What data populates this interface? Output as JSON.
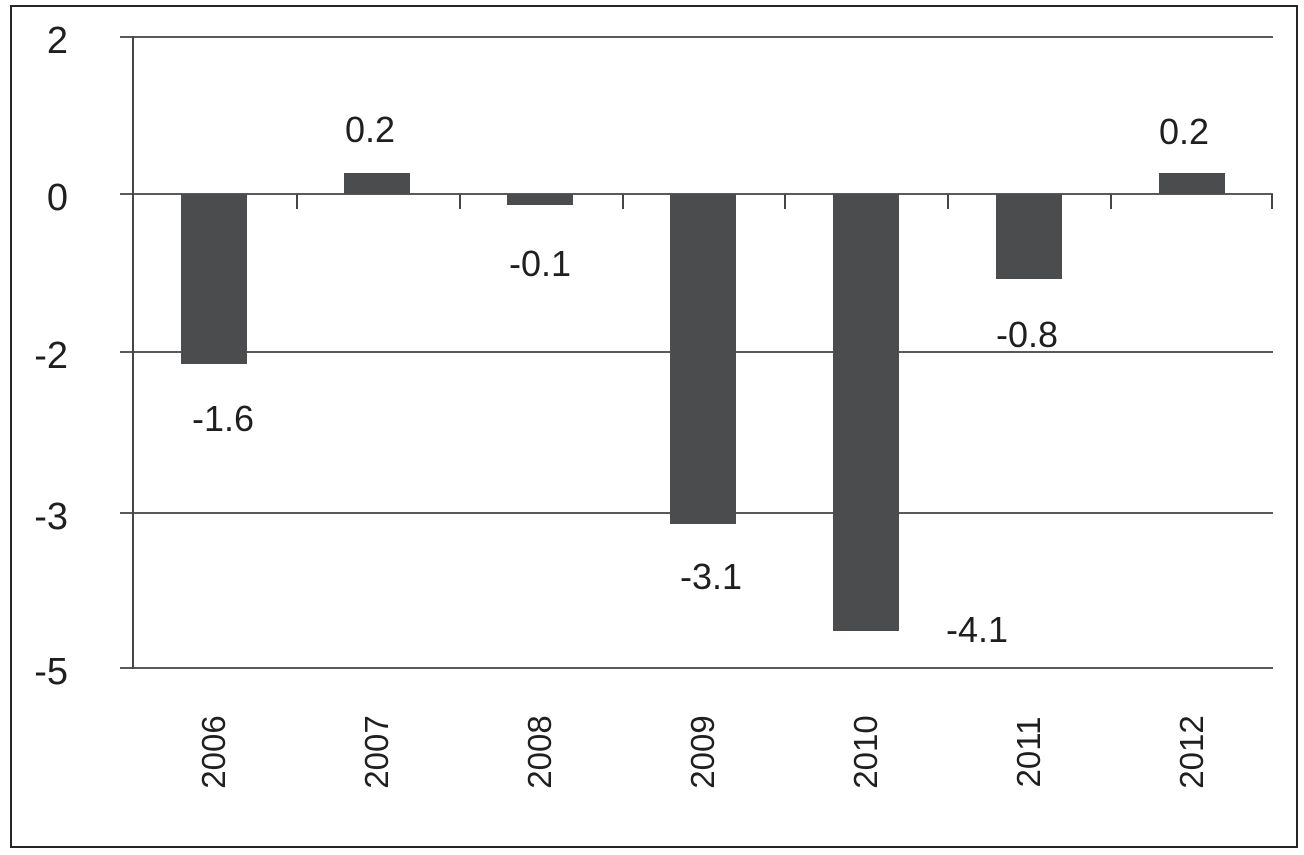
{
  "chart_data": {
    "type": "bar",
    "title": "",
    "xlabel": "",
    "ylabel": "",
    "categories": [
      "2006",
      "2007",
      "2008",
      "2009",
      "2010",
      "2011",
      "2012"
    ],
    "values": [
      -1.6,
      0.2,
      -0.1,
      -3.1,
      -4.1,
      -0.8,
      0.2
    ],
    "data_labels": [
      "-1.6",
      "0.2",
      "-0.1",
      "-3.1",
      "-4.1",
      "-0.8",
      "0.2"
    ],
    "y_axis": {
      "tick_labels": [
        "2",
        "0",
        "-2",
        "-3",
        "-5"
      ],
      "top_value": 2,
      "bottom_value": -5
    },
    "grid": true,
    "legend": false,
    "colors": {
      "bar": "#4a4c4e",
      "gridline": "#5a5a5a",
      "axis": "#454545",
      "text": "#1f1f1f",
      "background": "#ffffff",
      "border": "#262626"
    }
  }
}
